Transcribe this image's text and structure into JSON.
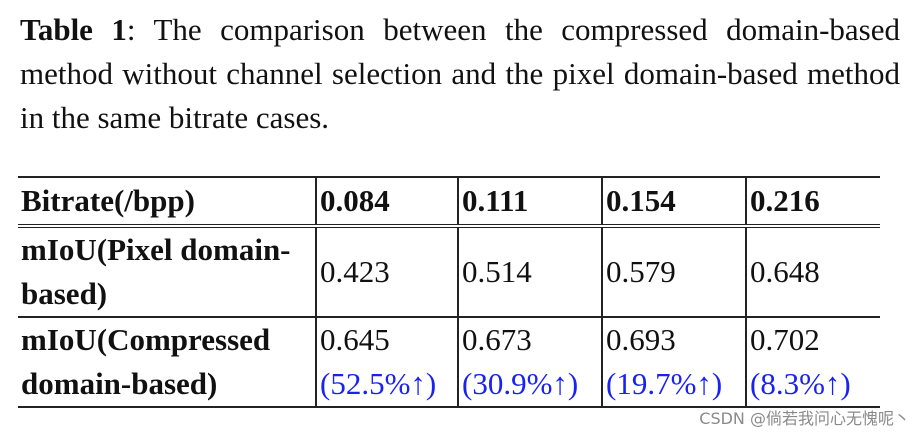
{
  "caption": {
    "label": "Table 1",
    "text": ": The comparison between the compressed domain-based method without channel selection and the pixel domain-based method in the same bitrate cases."
  },
  "table": {
    "header": [
      "Bitrate(/bpp)",
      "0.084",
      "0.111",
      "0.154",
      "0.216"
    ],
    "rows": [
      {
        "label": "mIoU(Pixel domain-based)",
        "values": [
          "0.423",
          "0.514",
          "0.579",
          "0.648"
        ]
      },
      {
        "label": "mIoU(Compressed domain-based)",
        "values": [
          "0.645",
          "0.673",
          "0.693",
          "0.702"
        ],
        "gains": [
          "(52.5%↑)",
          "(30.9%↑)",
          "(19.7%↑)",
          "(8.3%↑)"
        ]
      }
    ]
  },
  "colors": {
    "gain_text": "#1a22ee"
  },
  "watermark": "CSDN @倘若我问心无愧呢丶"
}
